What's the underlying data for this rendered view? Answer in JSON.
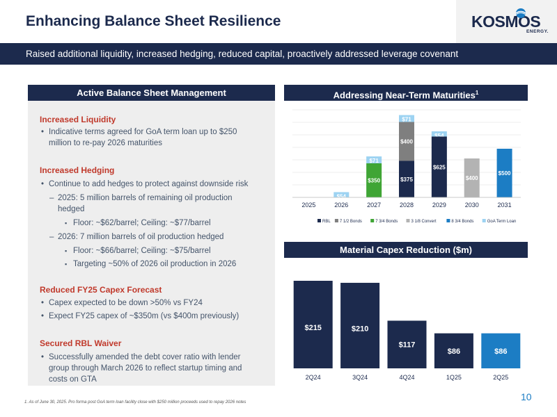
{
  "header": {
    "title": "Enhancing Balance Sheet Resilience",
    "logo_text": "KOSMOS",
    "logo_sub": "ENERGY.",
    "subtitle": "Raised additional liquidity, increased hedging, reduced capital, proactively addressed leverage covenant"
  },
  "left_panel": {
    "title": "Active Balance Sheet Management",
    "sections": [
      {
        "title": "Increased Liquidity",
        "b1": "Indicative terms agreed for GoA term loan up to $250",
        "b1b": "million to re-pay 2026 maturities"
      },
      {
        "title": "Increased Hedging",
        "b1": "Continue to add hedges to protect against downside risk",
        "d1": "2025: 5 million barrels of remaining oil production",
        "d1b": "hedged",
        "s1": "Floor: ~$62/barrel; Ceiling: ~$77/barrel",
        "d2": "2026: 7 million barrels of oil production hedged",
        "s2": "Floor: ~$66/barrel; Ceiling: ~$75/barrel",
        "s3": "Targeting ~50% of 2026 oil production in 2026"
      },
      {
        "title": "Reduced FY25 Capex Forecast",
        "b1": "Capex expected to be down >50% vs FY24",
        "b2": "Expect FY25 capex of ~$350m (vs $400m previously)"
      },
      {
        "title": "Secured RBL Waiver",
        "b1": "Successfully amended the debt cover ratio with lender",
        "b1b": "group through March 2026 to reflect startup timing and",
        "b1c": "costs on GTA"
      }
    ]
  },
  "maturities": {
    "title": "Addressing Near-Term Maturities",
    "sup": "1"
  },
  "capex": {
    "title": "Material Capex Reduction ($m)"
  },
  "chart_data": [
    {
      "type": "bar",
      "stacked": true,
      "title": "Addressing Near-Term Maturities",
      "categories": [
        "2025",
        "2026",
        "2027",
        "2028",
        "2029",
        "2030",
        "2031"
      ],
      "series": [
        {
          "name": "RBL",
          "color": "#1c2a4d",
          "values": [
            0,
            0,
            0,
            375,
            0,
            0,
            0
          ],
          "labels": [
            "",
            "",
            "",
            "$375",
            "",
            "",
            ""
          ]
        },
        {
          "name": "7 1/2 Bonds",
          "color": "#7f7f7f",
          "values": [
            0,
            0,
            0,
            400,
            0,
            0,
            0
          ],
          "labels": [
            "",
            "",
            "",
            "$400",
            "",
            "",
            ""
          ]
        },
        {
          "name": "7 3/4 Bonds",
          "color": "#3fa535",
          "values": [
            0,
            0,
            350,
            0,
            0,
            0,
            0
          ],
          "labels": [
            "",
            "",
            "$350",
            "",
            "",
            "",
            ""
          ]
        },
        {
          "name": "3 1/8 Convert",
          "color": "#b3b3b3",
          "values": [
            0,
            0,
            0,
            0,
            0,
            400,
            0
          ],
          "labels": [
            "",
            "",
            "",
            "",
            "",
            "$400",
            ""
          ]
        },
        {
          "name": "8 3/4 Bonds",
          "color": "#1c7dc4",
          "values": [
            0,
            0,
            0,
            0,
            0,
            0,
            500
          ],
          "labels": [
            "",
            "",
            "",
            "",
            "",
            "",
            "$500"
          ]
        },
        {
          "name": "GoA Term Loan",
          "color": "#9dd3f2",
          "values": [
            0,
            54,
            71,
            71,
            54,
            0,
            0
          ],
          "labels": [
            "",
            "$54",
            "$71",
            "$71",
            "$54",
            "",
            ""
          ]
        }
      ],
      "extra_bars": [
        {
          "category": "2029",
          "value": 625,
          "color": "#1c2a4d",
          "label": "$625"
        }
      ],
      "ylim": [
        0,
        900
      ],
      "grid": true,
      "legend": "bottom"
    },
    {
      "type": "bar",
      "title": "Material Capex Reduction ($m)",
      "categories": [
        "2Q24",
        "3Q24",
        "4Q24",
        "1Q25",
        "2Q25"
      ],
      "values": [
        215,
        210,
        117,
        86,
        86
      ],
      "labels": [
        "$215",
        "$210",
        "$117",
        "$86",
        "$86"
      ],
      "colors": [
        "#1c2a4d",
        "#1c2a4d",
        "#1c2a4d",
        "#1c2a4d",
        "#1c7dc4"
      ],
      "ylim": [
        0,
        230
      ]
    }
  ],
  "footnote": "1.   As of June 30, 2025. Pro forma post GoA term loan facility close with $250 million proceeds used to repay 2026 notes",
  "page_number": "10"
}
